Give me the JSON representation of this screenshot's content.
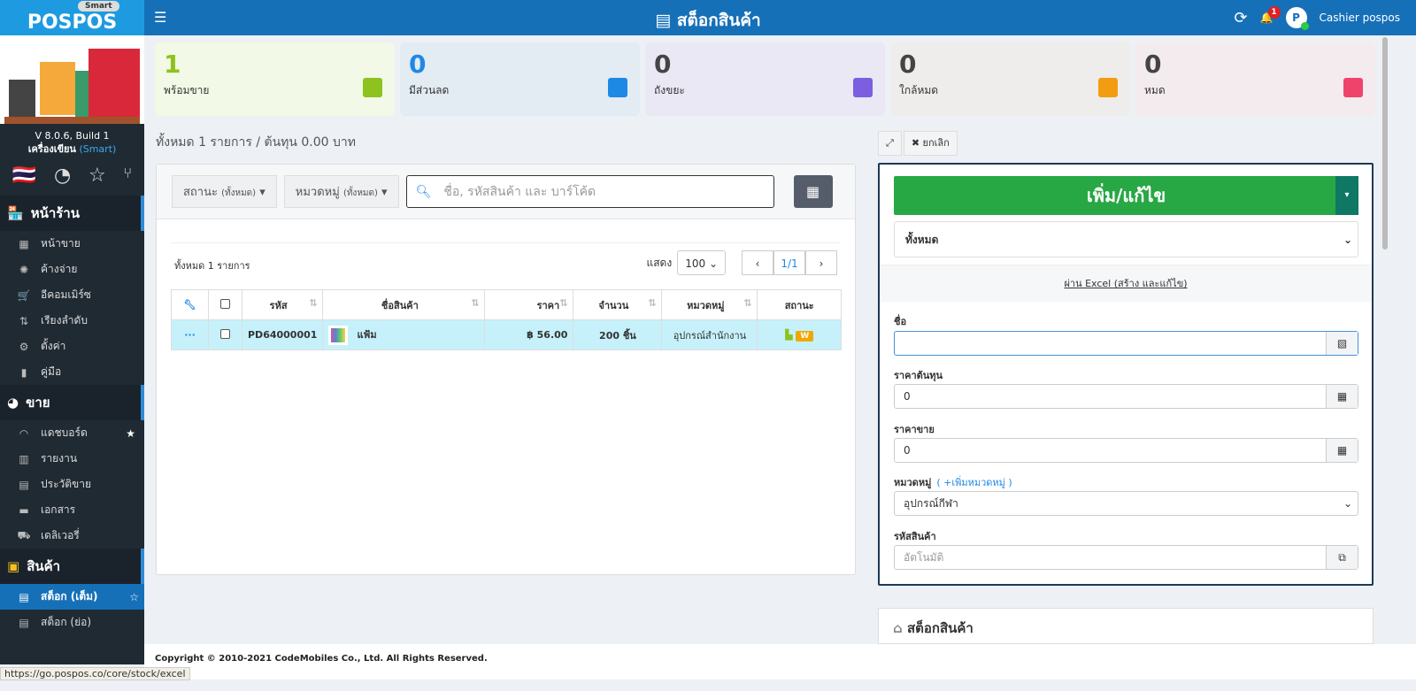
{
  "header": {
    "logo": "POSPOS",
    "logo_badge": "Smart",
    "title": "สต็อกสินค้า",
    "notifications": "1",
    "user": "Cashier pospos",
    "avatar": "P"
  },
  "sidebar": {
    "version": "V 8.0.6, Build 1",
    "store": "เครื่องเขียน",
    "plan": "(Smart)",
    "sections": [
      {
        "label": "หน้าร้าน",
        "items": [
          "หน้าขาย",
          "ค้างจ่าย",
          "อีคอมเมิร์ซ",
          "เรียงลำดับ",
          "ตั้งค่า",
          "คู่มือ"
        ]
      },
      {
        "label": "ขาย",
        "items": [
          "แดชบอร์ด",
          "รายงาน",
          "ประวัติขาย",
          "เอกสาร",
          "เดลิเวอรี่"
        ]
      },
      {
        "label": "สินค้า",
        "items": [
          "สต็อก (เต็ม)",
          "สต็อก (ย่อ)"
        ]
      }
    ]
  },
  "cards": [
    {
      "value": "1",
      "label": "พร้อมขาย",
      "bg": "#f2f9e6",
      "color": "#8dc21f",
      "num_color": "#8dc21f"
    },
    {
      "value": "0",
      "label": "มีส่วนลด",
      "bg": "#e3ebf3",
      "color": "#1e88e5",
      "num_color": "#1e88e5"
    },
    {
      "value": "0",
      "label": "ถังขยะ",
      "bg": "#eae8f4",
      "color": "#7b5fe0",
      "num_color": "#444"
    },
    {
      "value": "0",
      "label": "ใกล้หมด",
      "bg": "#eeedeb",
      "color": "#f39c12",
      "num_color": "#444"
    },
    {
      "value": "0",
      "label": "หมด",
      "bg": "#f4ebee",
      "color": "#f0436c",
      "num_color": "#444"
    }
  ],
  "summary": "ทั้งหมด 1 รายการ / ต้นทุน 0.00 บาท",
  "filters": {
    "status": "สถานะ",
    "status_sub": "(ทั้งหมด)",
    "category": "หมวดหมู่",
    "category_sub": "(ทั้งหมด)",
    "search_placeholder": "ชื่อ, รหัสสินค้า และ บาร์โค้ด"
  },
  "table": {
    "total": "ทั้งหมด 1 รายการ",
    "show": "แสดง",
    "page_size": "100",
    "page": "1/1",
    "columns": [
      "รหัส",
      "ชื่อสินค้า",
      "ราคา",
      "จำนวน",
      "หมวดหมู่",
      "สถานะ"
    ],
    "rows": [
      {
        "more": "···",
        "code": "PD64000001",
        "name": "แฟ้ม",
        "price": "฿ 56.00",
        "qty": "200 ชิ้น",
        "category": "อุปกรณ์สำนักงาน",
        "badge": "W"
      }
    ]
  },
  "form": {
    "cancel": "ยกเลิก",
    "add_edit": "เพิ่ม/แก้ไข",
    "mode": "ทั้งหมด",
    "excel": "ผ่าน Excel (สร้าง และแก้ไข)",
    "name_label": "ชื่อ",
    "name_value": "",
    "cost_label": "ราคาต้นทุน",
    "cost_value": "0",
    "price_label": "ราคาขาย",
    "price_value": "0",
    "category_label": "หมวดหมู่",
    "add_category": "( +เพิ่มหมวดหมู่ )",
    "category_value": "อุปกรณ์กีฬา",
    "code_label": "รหัสสินค้า",
    "code_placeholder": "อัตโนมัติ"
  },
  "stock_panel": "สต็อกสินค้า",
  "footer": "Copyright © 2010-2021 CodeMobiles Co., Ltd. All Rights Reserved.",
  "status_url": "https://go.pospos.co/core/stock/excel"
}
